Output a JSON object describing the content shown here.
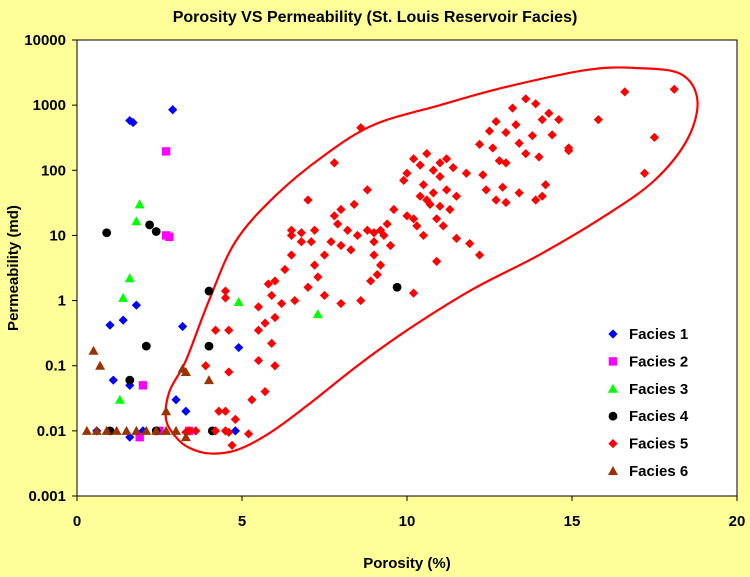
{
  "chart_data": {
    "type": "scatter",
    "title": "Porosity VS Permeability (St. Louis Reservoir Facies)",
    "xlabel": "Porosity (%)",
    "ylabel": "Permeability (md)",
    "xlim": [
      0,
      20
    ],
    "ylim": [
      0.001,
      10000
    ],
    "yscale": "log",
    "x_ticks": [
      "0",
      "5",
      "10",
      "15",
      "20"
    ],
    "y_ticks": [
      "0.001",
      "0.01",
      "0.1",
      "1",
      "10",
      "100",
      "1000",
      "10000"
    ],
    "grid": false,
    "legend_position": "bottom-right",
    "plot_background": "#FFFFFF",
    "page_background": "#FFFF99",
    "series": [
      {
        "name": "Facies 1",
        "marker": "diamond",
        "color": "#0000FF",
        "points": [
          [
            1.6,
            580
          ],
          [
            1.7,
            540
          ],
          [
            2.9,
            850
          ],
          [
            1.0,
            0.42
          ],
          [
            1.4,
            0.5
          ],
          [
            1.8,
            0.85
          ],
          [
            1.1,
            0.06
          ],
          [
            1.6,
            0.05
          ],
          [
            3.0,
            0.03
          ],
          [
            3.2,
            0.4
          ],
          [
            3.3,
            0.02
          ],
          [
            4.9,
            0.19
          ],
          [
            4.8,
            0.01
          ],
          [
            1.6,
            0.008
          ],
          [
            0.6,
            0.01
          ],
          [
            2.0,
            0.01
          ]
        ]
      },
      {
        "name": "Facies 2",
        "marker": "square",
        "color": "#FF00FF",
        "points": [
          [
            2.7,
            195
          ],
          [
            2.7,
            10
          ],
          [
            2.8,
            9.5
          ],
          [
            2.0,
            0.05
          ],
          [
            1.9,
            0.008
          ],
          [
            2.5,
            0.01
          ],
          [
            3.4,
            0.01
          ]
        ]
      },
      {
        "name": "Facies 3",
        "marker": "triangle",
        "color": "#00FF00",
        "points": [
          [
            1.9,
            30
          ],
          [
            1.8,
            16.5
          ],
          [
            1.6,
            2.2
          ],
          [
            1.4,
            1.1
          ],
          [
            4.9,
            0.95
          ],
          [
            7.3,
            0.62
          ],
          [
            1.3,
            0.03
          ]
        ]
      },
      {
        "name": "Facies 4",
        "marker": "circle",
        "color": "#000000",
        "points": [
          [
            0.9,
            11
          ],
          [
            2.2,
            14.5
          ],
          [
            2.4,
            11.5
          ],
          [
            2.1,
            0.2
          ],
          [
            4.0,
            1.4
          ],
          [
            4.0,
            0.2
          ],
          [
            9.7,
            1.6
          ],
          [
            1.6,
            0.06
          ],
          [
            1.0,
            0.01
          ],
          [
            4.1,
            0.01
          ],
          [
            2.4,
            0.01
          ]
        ]
      },
      {
        "name": "Facies 5",
        "marker": "diamond",
        "color": "#FF0000",
        "points": [
          [
            18.1,
            1750
          ],
          [
            16.6,
            1600
          ],
          [
            15.8,
            600
          ],
          [
            17.5,
            320
          ],
          [
            17.2,
            90
          ],
          [
            13.6,
            1250
          ],
          [
            13.9,
            1050
          ],
          [
            13.2,
            900
          ],
          [
            14.3,
            750
          ],
          [
            14.6,
            600
          ],
          [
            14.1,
            600
          ],
          [
            13.3,
            500
          ],
          [
            12.7,
            560
          ],
          [
            12.5,
            400
          ],
          [
            13.0,
            380
          ],
          [
            13.8,
            340
          ],
          [
            14.4,
            350
          ],
          [
            13.4,
            260
          ],
          [
            14.9,
            220
          ],
          [
            14.9,
            200
          ],
          [
            12.2,
            250
          ],
          [
            12.6,
            220
          ],
          [
            13.6,
            180
          ],
          [
            14.0,
            160
          ],
          [
            13.0,
            130
          ],
          [
            12.8,
            140
          ],
          [
            12.3,
            85
          ],
          [
            11.8,
            90
          ],
          [
            12.9,
            55
          ],
          [
            12.4,
            50
          ],
          [
            13.4,
            45
          ],
          [
            14.2,
            60
          ],
          [
            12.7,
            35
          ],
          [
            13.0,
            32
          ],
          [
            13.9,
            35
          ],
          [
            14.1,
            40
          ],
          [
            11.2,
            150
          ],
          [
            11.0,
            130
          ],
          [
            10.8,
            100
          ],
          [
            10.6,
            180
          ],
          [
            10.2,
            150
          ],
          [
            10.4,
            120
          ],
          [
            11.4,
            110
          ],
          [
            11.0,
            80
          ],
          [
            10.0,
            90
          ],
          [
            9.9,
            70
          ],
          [
            10.5,
            60
          ],
          [
            10.8,
            45
          ],
          [
            11.2,
            50
          ],
          [
            11.5,
            40
          ],
          [
            10.4,
            40
          ],
          [
            10.6,
            35
          ],
          [
            10.7,
            30
          ],
          [
            11.0,
            28
          ],
          [
            11.3,
            25
          ],
          [
            10.0,
            20
          ],
          [
            10.2,
            18
          ],
          [
            10.9,
            18
          ],
          [
            10.3,
            14
          ],
          [
            11.1,
            14
          ],
          [
            10.5,
            10
          ],
          [
            11.5,
            9
          ],
          [
            11.9,
            7.5
          ],
          [
            12.2,
            5
          ],
          [
            9.6,
            25
          ],
          [
            9.4,
            15
          ],
          [
            9.2,
            12
          ],
          [
            9.0,
            8
          ],
          [
            9.3,
            10
          ],
          [
            9.5,
            7
          ],
          [
            9.0,
            5
          ],
          [
            9.2,
            3.5
          ],
          [
            9.1,
            2.5
          ],
          [
            10.9,
            4
          ],
          [
            10.2,
            1.3
          ],
          [
            7.8,
            130
          ],
          [
            8.6,
            450
          ],
          [
            8.8,
            50
          ],
          [
            8.4,
            30
          ],
          [
            8.0,
            25
          ],
          [
            7.8,
            20
          ],
          [
            7.9,
            15
          ],
          [
            8.2,
            12
          ],
          [
            8.5,
            10
          ],
          [
            8.8,
            12
          ],
          [
            9.0,
            11
          ],
          [
            7.7,
            8
          ],
          [
            8.0,
            7
          ],
          [
            8.3,
            6
          ],
          [
            7.5,
            5
          ],
          [
            7.2,
            3.5
          ],
          [
            7.0,
            35
          ],
          [
            7.2,
            12
          ],
          [
            6.8,
            11
          ],
          [
            6.5,
            10
          ],
          [
            6.8,
            8
          ],
          [
            6.5,
            5
          ],
          [
            6.3,
            3
          ],
          [
            6.0,
            2
          ],
          [
            5.8,
            1.8
          ],
          [
            7.0,
            1.6
          ],
          [
            7.5,
            1.2
          ],
          [
            8.0,
            0.9
          ],
          [
            8.6,
            1.0
          ],
          [
            8.9,
            2.0
          ],
          [
            7.3,
            2.3
          ],
          [
            6.6,
            1.0
          ],
          [
            6.2,
            0.9
          ],
          [
            5.9,
            1.2
          ],
          [
            5.5,
            0.8
          ],
          [
            5.7,
            0.45
          ],
          [
            5.5,
            0.35
          ],
          [
            6.0,
            0.55
          ],
          [
            5.9,
            0.22
          ],
          [
            5.5,
            0.12
          ],
          [
            6.0,
            0.1
          ],
          [
            5.3,
            0.03
          ],
          [
            4.6,
            0.35
          ],
          [
            4.5,
            1.1
          ],
          [
            4.5,
            1.4
          ],
          [
            4.6,
            0.08
          ],
          [
            4.3,
            0.02
          ],
          [
            4.5,
            0.02
          ],
          [
            3.9,
            0.1
          ],
          [
            4.2,
            0.35
          ],
          [
            3.6,
            0.01
          ],
          [
            4.5,
            0.01
          ],
          [
            4.7,
            0.006
          ],
          [
            5.2,
            0.009
          ],
          [
            5.7,
            0.04
          ],
          [
            4.8,
            0.015
          ],
          [
            4.6,
            0.0095
          ],
          [
            3.4,
            0.01
          ],
          [
            3.3,
            0.0095
          ],
          [
            4.2,
            0.01
          ],
          [
            7.1,
            8
          ],
          [
            6.5,
            12
          ]
        ]
      },
      {
        "name": "Facies 6",
        "marker": "triangle",
        "color": "#993300",
        "points": [
          [
            0.5,
            0.17
          ],
          [
            0.7,
            0.1
          ],
          [
            3.2,
            0.09
          ],
          [
            3.3,
            0.08
          ],
          [
            4.0,
            0.06
          ],
          [
            2.7,
            0.02
          ],
          [
            3.3,
            0.008
          ],
          [
            0.3,
            0.01
          ],
          [
            0.6,
            0.01
          ],
          [
            0.9,
            0.01
          ],
          [
            1.2,
            0.01
          ],
          [
            1.5,
            0.01
          ],
          [
            1.8,
            0.01
          ],
          [
            2.1,
            0.01
          ],
          [
            2.4,
            0.01
          ],
          [
            2.7,
            0.01
          ],
          [
            3.0,
            0.01
          ]
        ]
      }
    ],
    "annotation": {
      "type": "ellipse-outline",
      "color": "#FF0000"
    }
  }
}
